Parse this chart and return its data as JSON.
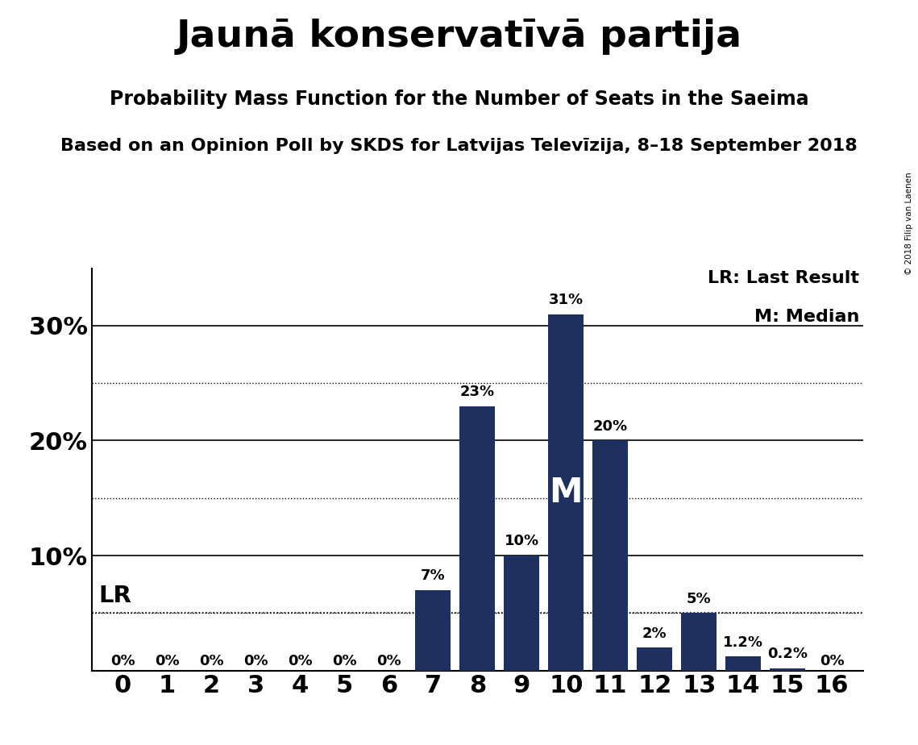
{
  "title": "Jaunā konservatīvā partija",
  "subtitle1": "Probability Mass Function for the Number of Seats in the Saeima",
  "subtitle2": "Based on an Opinion Poll by SKDS for Latvijas Televīzija, 8–18 September 2018",
  "copyright": "© 2018 Filip van Laenen",
  "categories": [
    0,
    1,
    2,
    3,
    4,
    5,
    6,
    7,
    8,
    9,
    10,
    11,
    12,
    13,
    14,
    15,
    16
  ],
  "values": [
    0,
    0,
    0,
    0,
    0,
    0,
    0,
    7,
    23,
    10,
    31,
    20,
    2,
    5,
    1.2,
    0.2,
    0
  ],
  "bar_color": "#1e3060",
  "bar_labels": [
    "0%",
    "0%",
    "0%",
    "0%",
    "0%",
    "0%",
    "0%",
    "7%",
    "23%",
    "10%",
    "31%",
    "20%",
    "2%",
    "5%",
    "1.2%",
    "0.2%",
    "0%"
  ],
  "yticks": [
    0,
    10,
    20,
    30
  ],
  "ytick_labels": [
    "",
    "10%",
    "20%",
    "30%"
  ],
  "ylim": [
    0,
    35
  ],
  "lr_value": 5,
  "lr_label": "LR",
  "median_seat": 10,
  "median_label": "M",
  "legend_lr": "LR: Last Result",
  "legend_m": "M: Median",
  "background_color": "#ffffff",
  "dotted_gridlines": [
    5,
    15,
    25
  ],
  "solid_gridlines": [
    10,
    20,
    30
  ],
  "title_fontsize": 34,
  "subtitle1_fontsize": 17,
  "subtitle2_fontsize": 16,
  "bar_label_fontsize": 13,
  "ytick_fontsize": 22,
  "xtick_fontsize": 22,
  "legend_fontsize": 16,
  "lr_fontsize": 21,
  "median_fontsize": 30
}
